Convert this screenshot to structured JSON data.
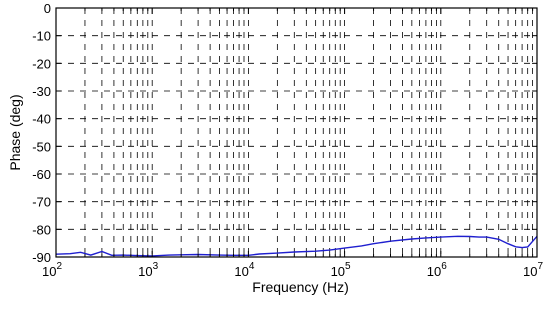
{
  "chart_data": {
    "type": "line",
    "title": "",
    "xlabel": "Frequency (Hz)",
    "ylabel": "Phase (deg)",
    "xscale": "log",
    "xlim": [
      100,
      10000000
    ],
    "ylim": [
      -90,
      0
    ],
    "grid": true,
    "x_tick_labels": [
      {
        "base": "10",
        "exp": "2"
      },
      {
        "base": "10",
        "exp": "3"
      },
      {
        "base": "10",
        "exp": "4"
      },
      {
        "base": "10",
        "exp": "5"
      },
      {
        "base": "10",
        "exp": "6"
      },
      {
        "base": "10",
        "exp": "7"
      }
    ],
    "y_tick_labels": [
      "0",
      "-10",
      "-20",
      "-30",
      "-40",
      "-50",
      "-60",
      "-70",
      "-80",
      "-90"
    ],
    "y_ticks": [
      0,
      -10,
      -20,
      -30,
      -40,
      -50,
      -60,
      -70,
      -80,
      -90
    ],
    "series": [
      {
        "color": "#1f1fcf",
        "x": [
          100,
          140,
          180,
          230,
          300,
          380,
          500,
          700,
          1000,
          1500,
          2000,
          3000,
          5000,
          7000,
          10000,
          13000,
          20000,
          30000,
          50000,
          70000,
          100000,
          150000,
          200000,
          300000,
          500000,
          700000,
          1000000,
          1500000,
          2000000,
          2500000,
          3000000,
          4000000,
          5000000,
          6000000,
          7000000,
          8000000,
          10000000
        ],
        "y": [
          -89.0,
          -88.8,
          -88.3,
          -89.3,
          -88.0,
          -89.4,
          -89.3,
          -89.5,
          -89.6,
          -89.3,
          -89.2,
          -89.1,
          -89.3,
          -89.4,
          -89.4,
          -88.9,
          -88.6,
          -88.2,
          -87.9,
          -87.5,
          -86.8,
          -86.0,
          -85.2,
          -84.3,
          -83.5,
          -83.1,
          -82.8,
          -82.5,
          -82.6,
          -82.8,
          -82.8,
          -83.6,
          -85.2,
          -86.3,
          -86.6,
          -86.4,
          -82.5
        ]
      }
    ]
  }
}
